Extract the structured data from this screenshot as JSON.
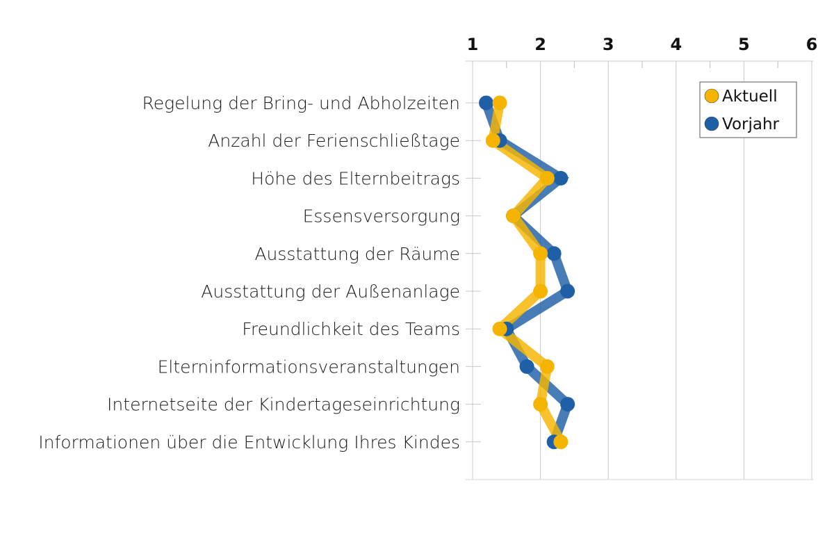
{
  "chart_data": {
    "type": "line",
    "orientation": "horizontal-values",
    "categories": [
      "Regelung der Bring- und Abholzeiten",
      "Anzahl der Ferienschließtage",
      "Höhe des Elternbeitrags",
      "Essensversorgung",
      "Ausstattung der Räume",
      "Ausstattung der Außenanlage",
      "Freundlichkeit des Teams",
      "Elterninformationsveranstaltungen",
      "Internetseite der Kindertageseinrichtung",
      "Informationen über die Entwicklung Ihres Kindes"
    ],
    "x_ticks": [
      "1",
      "2",
      "3",
      "4",
      "5",
      "6"
    ],
    "xlim": [
      1,
      6
    ],
    "grid": true,
    "legend_position": "top-right",
    "series": [
      {
        "name": "Vorjahr",
        "color": "#1f5fa6",
        "values": [
          1.2,
          1.4,
          2.3,
          1.6,
          2.2,
          2.4,
          1.5,
          1.8,
          2.4,
          2.2
        ]
      },
      {
        "name": "Aktuell",
        "color": "#f5b400",
        "values": [
          1.4,
          1.3,
          2.1,
          1.6,
          2.0,
          2.0,
          1.4,
          2.1,
          2.0,
          2.3
        ]
      }
    ]
  }
}
